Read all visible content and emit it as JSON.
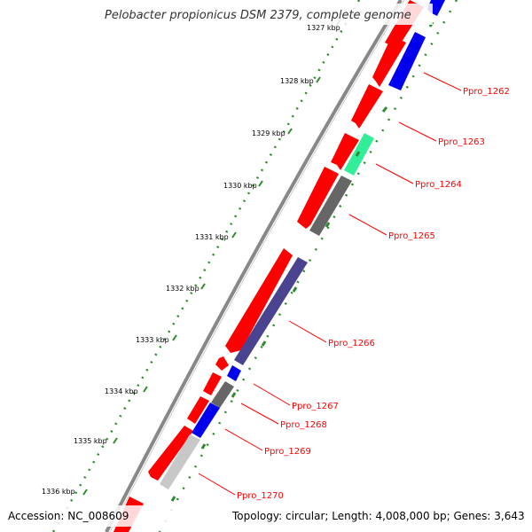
{
  "title": "Pelobacter propionicus DSM 2379, complete genome",
  "accession": "Accession: NC_008609",
  "summary": "Topology: circular; Length: 4,008,000 bp; Genes: 3,643",
  "kbp_labels": [
    "1327 kbp",
    "1328 kbp",
    "1329 kbp",
    "1330 kbp",
    "1331 kbp",
    "1332 kbp",
    "1333 kbp",
    "1334 kbp",
    "1335 kbp",
    "1336 kbp"
  ],
  "gene_labels": [
    "Ppro_1262",
    "Ppro_1263",
    "Ppro_1264",
    "Ppro_1265",
    "Ppro_1266",
    "Ppro_1267",
    "Ppro_1268",
    "Ppro_1269",
    "Ppro_1270"
  ],
  "colors": {
    "cds": "#ff0000",
    "blue": "#0000ee",
    "green": "#33ee99",
    "dark_gray": "#666666",
    "purple": "#4a4490",
    "light_gray": "#c8c8c8",
    "backbone": "#888888",
    "tick": "#2e8b2e",
    "leader": "#ff0000"
  }
}
